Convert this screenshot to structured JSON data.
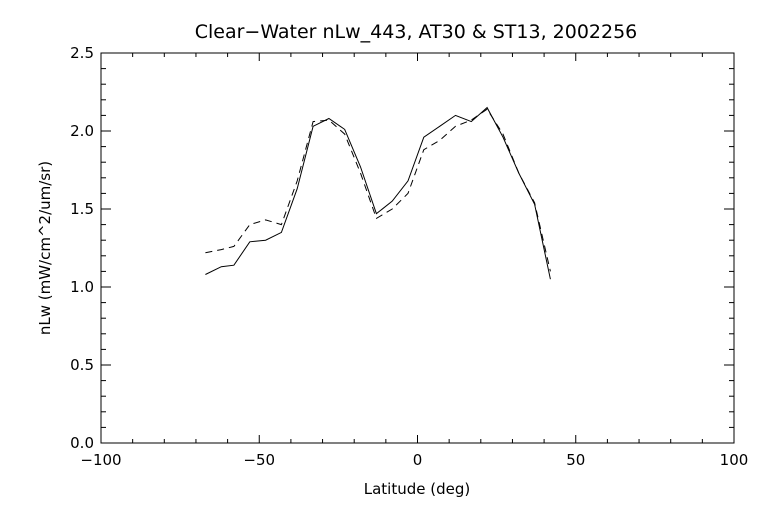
{
  "chart_data": {
    "type": "line",
    "title": "Clear−Water nLw_443, AT30 & ST13, 2002256",
    "xlabel": "Latitude (deg)",
    "ylabel": "nLw (mW/cm^2/um/sr)",
    "xlim": [
      -100,
      100
    ],
    "ylim": [
      0.0,
      2.5
    ],
    "x_ticks": [
      -100,
      -50,
      0,
      50,
      100
    ],
    "x_tick_labels": [
      "−100",
      "−50",
      "0",
      "50",
      "100"
    ],
    "y_ticks": [
      0.0,
      0.5,
      1.0,
      1.5,
      2.0,
      2.5
    ],
    "y_tick_labels": [
      "0.0",
      "0.5",
      "1.0",
      "1.5",
      "2.0",
      "2.5"
    ],
    "grid": false,
    "series": [
      {
        "style": "solid",
        "color": "#000000",
        "x": [
          -67,
          -62,
          -58,
          -53,
          -48,
          -43,
          -38,
          -33,
          -28,
          -23,
          -18,
          -13,
          -8,
          -3,
          2,
          7,
          12,
          17,
          22,
          27,
          32,
          37,
          42
        ],
        "y": [
          1.08,
          1.13,
          1.14,
          1.29,
          1.3,
          1.35,
          1.63,
          2.03,
          2.08,
          2.01,
          1.77,
          1.47,
          1.55,
          1.68,
          1.96,
          2.03,
          2.1,
          2.06,
          2.15,
          1.96,
          1.73,
          1.53,
          1.05
        ]
      },
      {
        "style": "dashed",
        "color": "#000000",
        "x": [
          -67,
          -62,
          -58,
          -53,
          -48,
          -43,
          -38,
          -33,
          -28,
          -23,
          -18,
          -13,
          -8,
          -3,
          2,
          7,
          12,
          17,
          22,
          27,
          32,
          37,
          42
        ],
        "y": [
          1.22,
          1.24,
          1.26,
          1.4,
          1.43,
          1.4,
          1.68,
          2.06,
          2.07,
          1.98,
          1.73,
          1.44,
          1.5,
          1.6,
          1.88,
          1.94,
          2.03,
          2.07,
          2.14,
          1.98,
          1.73,
          1.54,
          1.1
        ]
      }
    ]
  }
}
